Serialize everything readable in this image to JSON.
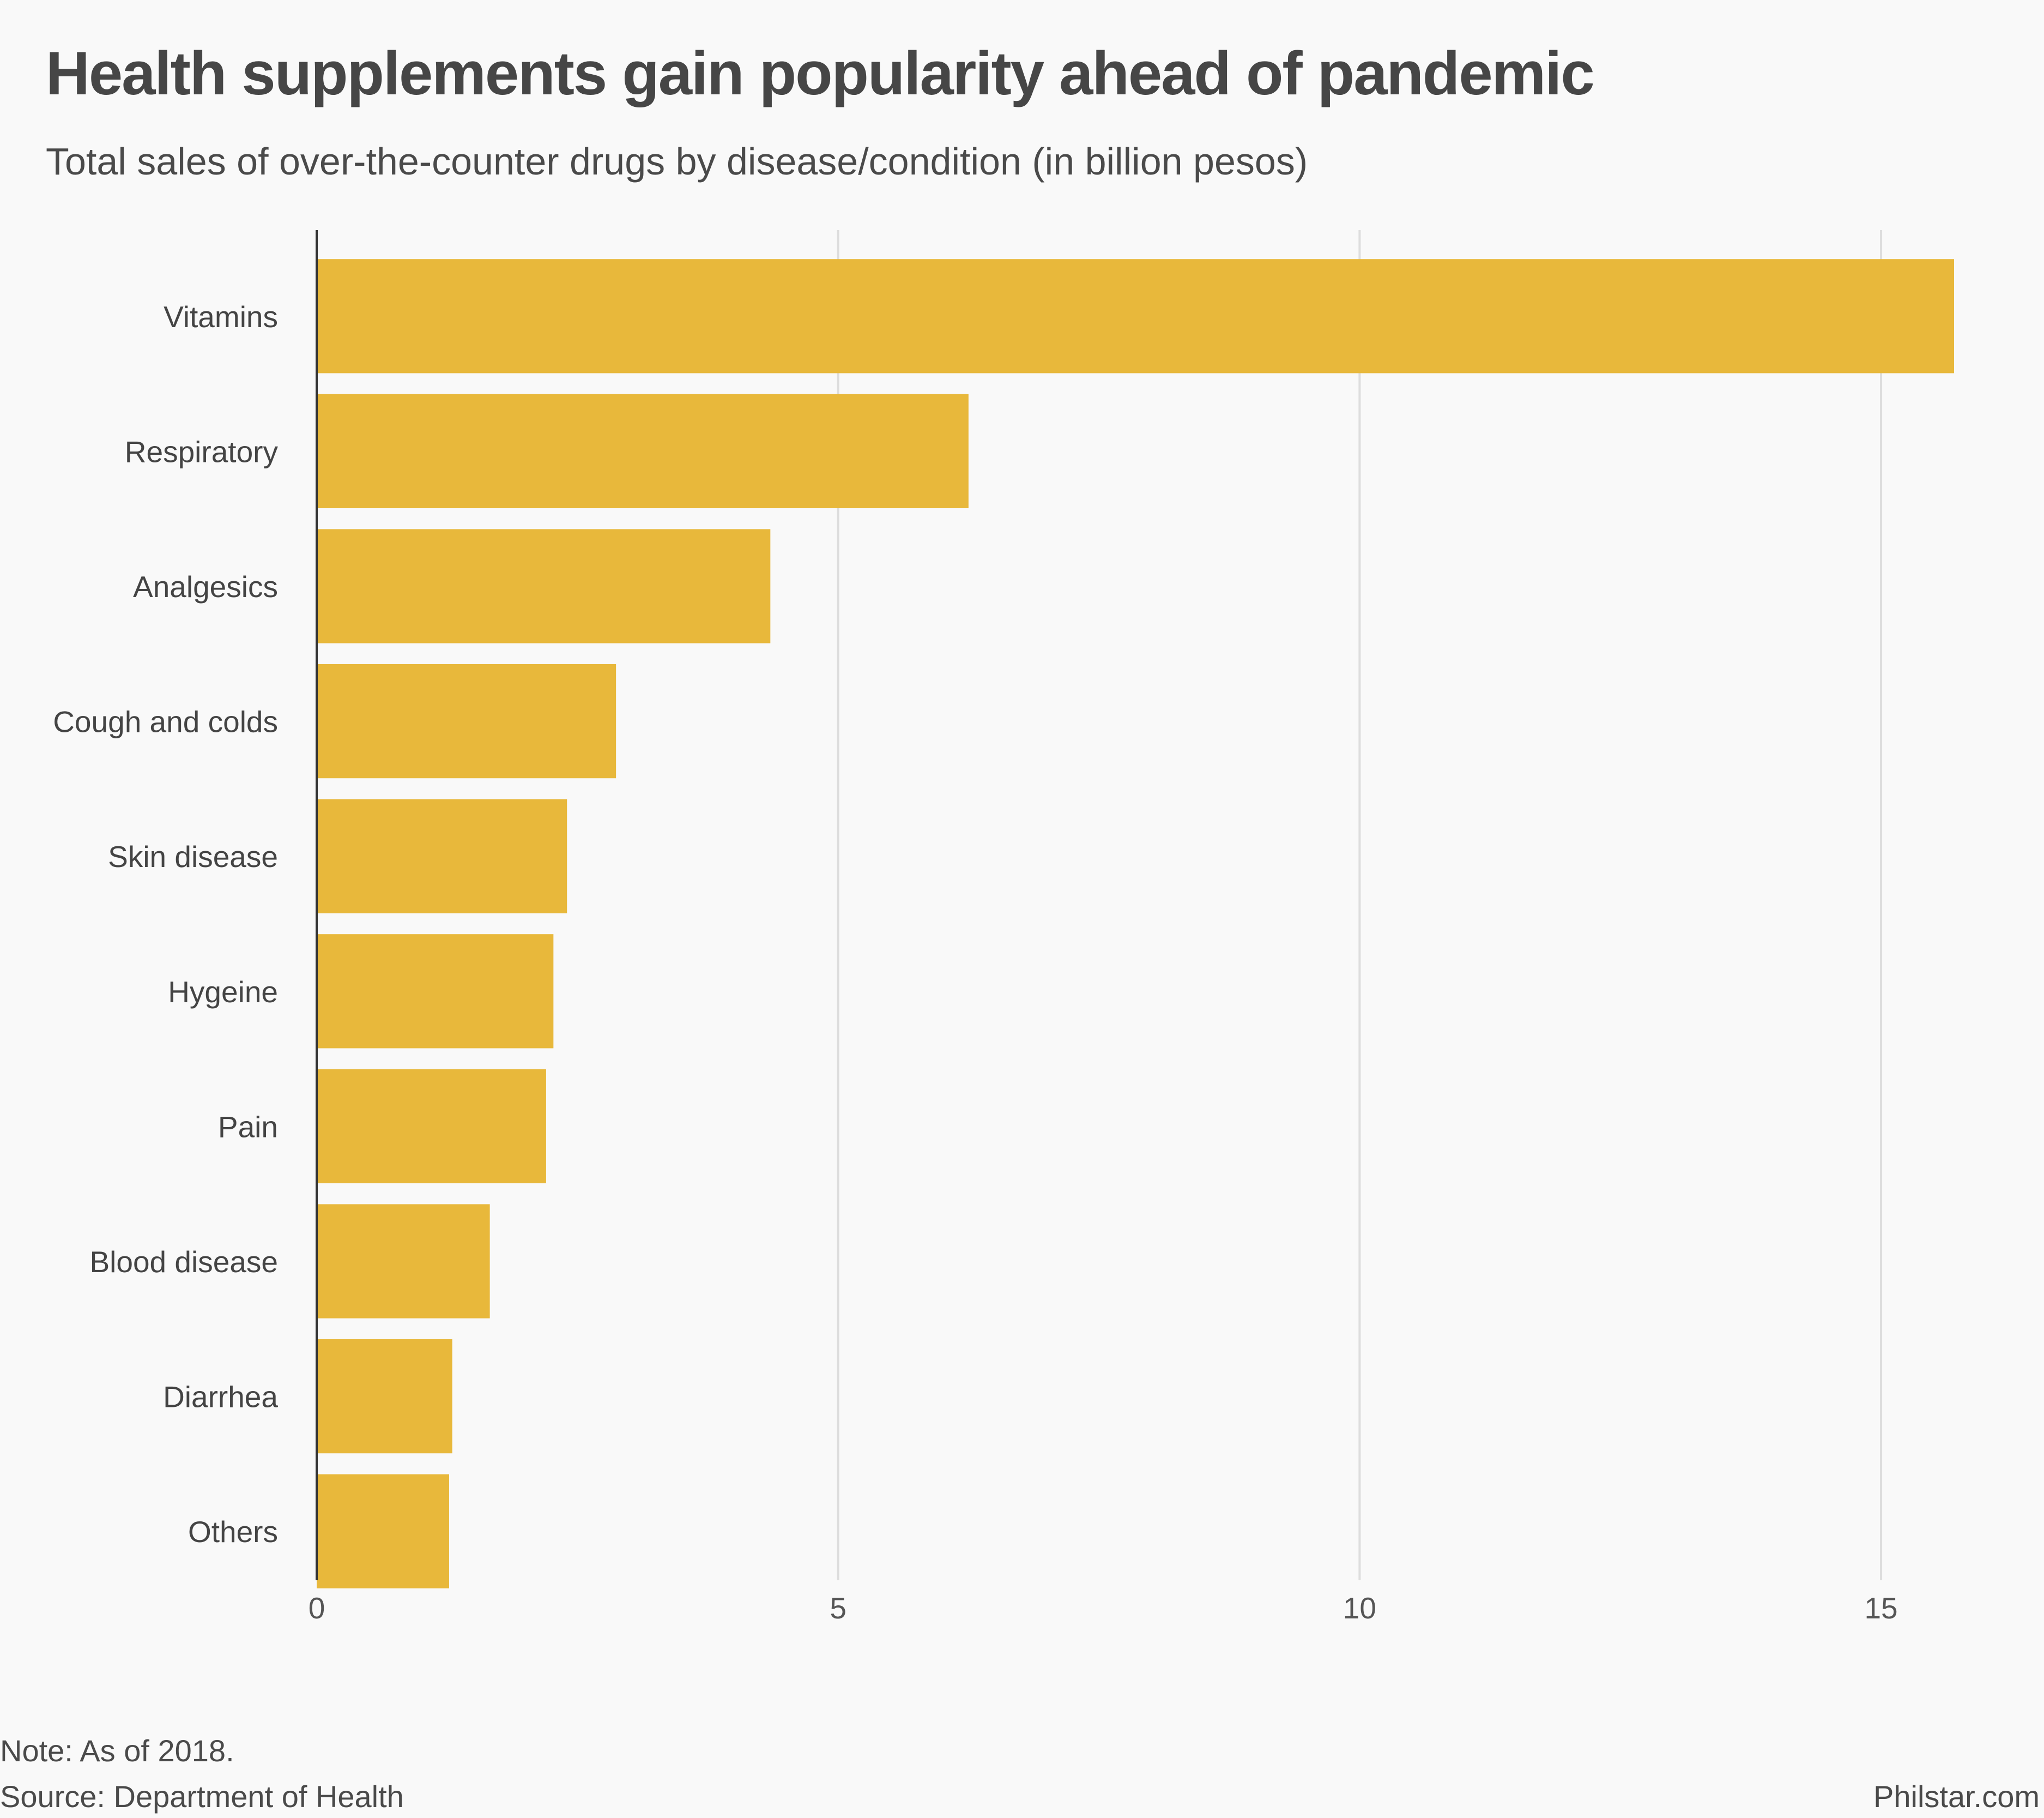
{
  "colors": {
    "bar": "#e8b83b",
    "grid": "#dddddd",
    "axis": "#333333",
    "background": "#f9f9f9"
  },
  "chart_data": {
    "type": "bar",
    "orientation": "horizontal",
    "title": "Health supplements gain popularity ahead of pandemic",
    "subtitle": "Total sales of over-the-counter drugs by disease/condition (in billion pesos)",
    "categories": [
      "Vitamins",
      "Respiratory",
      "Analgesics",
      "Cough and colds",
      "Skin disease",
      "Hygeine",
      "Pain",
      "Blood disease",
      "Diarrhea",
      "Others"
    ],
    "values": [
      15.7,
      6.25,
      4.35,
      2.87,
      2.4,
      2.27,
      2.2,
      1.66,
      1.3,
      1.27
    ],
    "xlim": [
      0,
      15.7
    ],
    "xticks": [
      0,
      5,
      10,
      15
    ],
    "xtick_labels": [
      "0",
      "5",
      "10",
      "15"
    ],
    "grid": true
  },
  "footer": {
    "note": "Note: As of 2018.",
    "source": "Source: Department of Health",
    "credit": "Philstar.com"
  }
}
